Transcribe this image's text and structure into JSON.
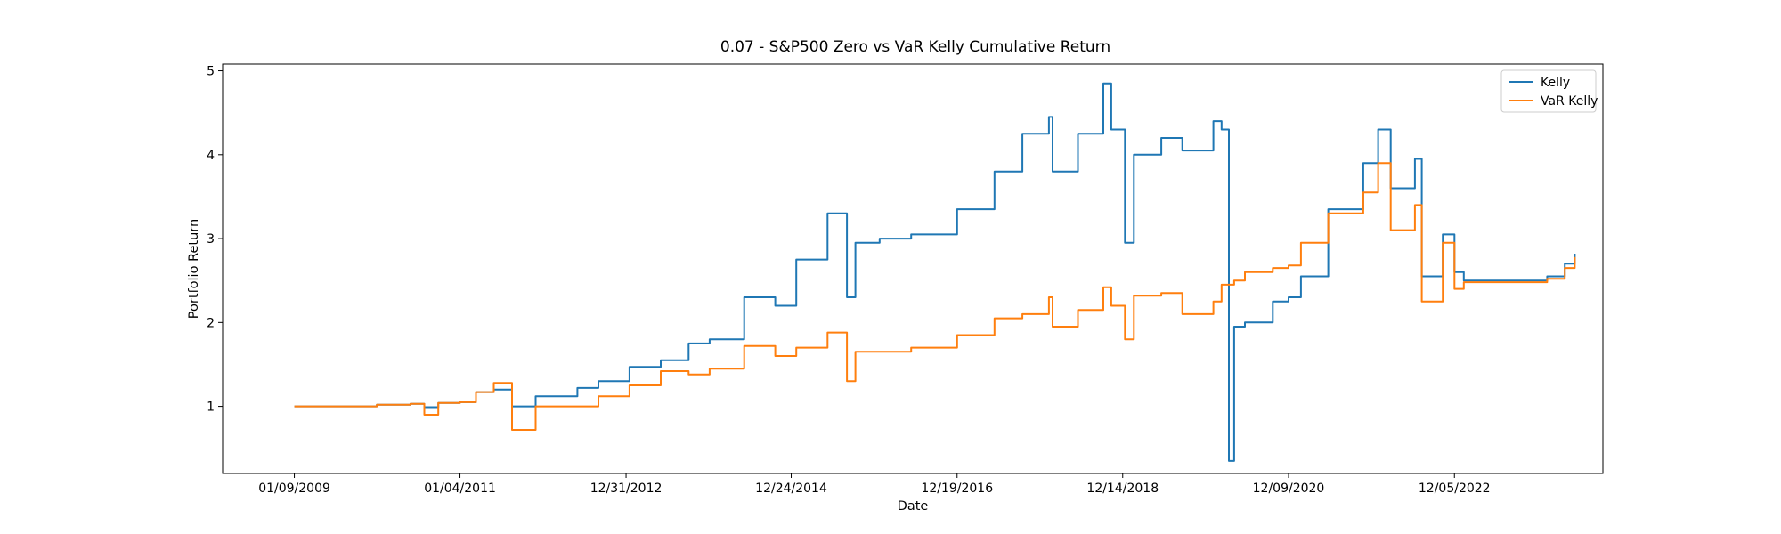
{
  "chart_data": {
    "type": "line",
    "title": "0.07 - S&P500 Zero vs VaR Kelly Cumulative Return",
    "xlabel": "Date",
    "ylabel": "Portfolio Return",
    "x_tick_labels": [
      "01/09/2009",
      "01/04/2011",
      "12/31/2012",
      "12/24/2014",
      "12/19/2016",
      "12/14/2018",
      "12/09/2020",
      "12/05/2022"
    ],
    "x_tick_values": [
      "2009-01-09",
      "2011-01-04",
      "2012-12-31",
      "2014-12-24",
      "2016-12-19",
      "2018-12-14",
      "2020-12-09",
      "2022-12-05"
    ],
    "x_unlabeled_ticks": [
      "2024-11-29"
    ],
    "xlim": [
      "2008-03-01",
      "2024-09-15"
    ],
    "ylim": [
      0.2,
      5.08
    ],
    "y_ticks": [
      1,
      2,
      3,
      4,
      5
    ],
    "grid": false,
    "legend_position": "top-right",
    "series": [
      {
        "name": "Kelly",
        "color": "#1f77b4",
        "points": [
          [
            "2009-01-09",
            1.0
          ],
          [
            "2010-01-05",
            1.02
          ],
          [
            "2010-06-01",
            1.03
          ],
          [
            "2010-08-01",
            0.99
          ],
          [
            "2010-10-01",
            1.04
          ],
          [
            "2011-01-04",
            1.05
          ],
          [
            "2011-03-15",
            1.17
          ],
          [
            "2011-06-01",
            1.2
          ],
          [
            "2011-08-20",
            1.0
          ],
          [
            "2011-12-01",
            1.12
          ],
          [
            "2012-06-01",
            1.22
          ],
          [
            "2012-09-01",
            1.3
          ],
          [
            "2013-01-15",
            1.47
          ],
          [
            "2013-06-01",
            1.55
          ],
          [
            "2013-10-01",
            1.75
          ],
          [
            "2014-01-01",
            1.8
          ],
          [
            "2014-06-01",
            2.3
          ],
          [
            "2014-10-15",
            2.2
          ],
          [
            "2015-01-15",
            2.75
          ],
          [
            "2015-06-01",
            3.3
          ],
          [
            "2015-08-25",
            2.3
          ],
          [
            "2015-10-01",
            2.95
          ],
          [
            "2016-01-15",
            3.0
          ],
          [
            "2016-06-01",
            3.05
          ],
          [
            "2016-12-19",
            3.35
          ],
          [
            "2017-06-01",
            3.8
          ],
          [
            "2017-10-01",
            4.25
          ],
          [
            "2018-01-25",
            4.45
          ],
          [
            "2018-02-10",
            3.8
          ],
          [
            "2018-06-01",
            4.25
          ],
          [
            "2018-09-20",
            4.85
          ],
          [
            "2018-10-25",
            4.3
          ],
          [
            "2018-12-24",
            2.95
          ],
          [
            "2019-02-01",
            4.0
          ],
          [
            "2019-06-01",
            4.2
          ],
          [
            "2019-09-01",
            4.05
          ],
          [
            "2020-01-15",
            4.4
          ],
          [
            "2020-02-20",
            4.3
          ],
          [
            "2020-03-23",
            0.35
          ],
          [
            "2020-04-15",
            1.95
          ],
          [
            "2020-06-01",
            2.0
          ],
          [
            "2020-10-01",
            2.25
          ],
          [
            "2020-12-09",
            2.3
          ],
          [
            "2021-02-01",
            2.55
          ],
          [
            "2021-06-01",
            3.35
          ],
          [
            "2021-11-01",
            3.9
          ],
          [
            "2022-01-05",
            4.3
          ],
          [
            "2022-03-01",
            3.6
          ],
          [
            "2022-06-15",
            3.95
          ],
          [
            "2022-07-15",
            2.55
          ],
          [
            "2022-10-15",
            3.05
          ],
          [
            "2022-12-05",
            2.6
          ],
          [
            "2023-01-15",
            2.5
          ],
          [
            "2024-01-15",
            2.55
          ],
          [
            "2024-04-01",
            2.7
          ],
          [
            "2024-05-15",
            2.82
          ]
        ]
      },
      {
        "name": "VaR Kelly",
        "color": "#ff7f0e",
        "points": [
          [
            "2009-01-09",
            1.0
          ],
          [
            "2010-01-05",
            1.02
          ],
          [
            "2010-06-01",
            1.03
          ],
          [
            "2010-08-01",
            0.9
          ],
          [
            "2010-10-01",
            1.04
          ],
          [
            "2011-01-04",
            1.05
          ],
          [
            "2011-03-15",
            1.17
          ],
          [
            "2011-06-01",
            1.28
          ],
          [
            "2011-08-20",
            0.72
          ],
          [
            "2011-12-01",
            1.0
          ],
          [
            "2012-06-01",
            1.0
          ],
          [
            "2012-09-01",
            1.12
          ],
          [
            "2013-01-15",
            1.25
          ],
          [
            "2013-06-01",
            1.42
          ],
          [
            "2013-10-01",
            1.38
          ],
          [
            "2014-01-01",
            1.45
          ],
          [
            "2014-06-01",
            1.72
          ],
          [
            "2014-10-15",
            1.6
          ],
          [
            "2015-01-15",
            1.7
          ],
          [
            "2015-06-01",
            1.88
          ],
          [
            "2015-08-25",
            1.3
          ],
          [
            "2015-10-01",
            1.65
          ],
          [
            "2016-01-15",
            1.65
          ],
          [
            "2016-06-01",
            1.7
          ],
          [
            "2016-12-19",
            1.85
          ],
          [
            "2017-06-01",
            2.05
          ],
          [
            "2017-10-01",
            2.1
          ],
          [
            "2018-01-25",
            2.3
          ],
          [
            "2018-02-10",
            1.95
          ],
          [
            "2018-06-01",
            2.15
          ],
          [
            "2018-09-20",
            2.42
          ],
          [
            "2018-10-25",
            2.2
          ],
          [
            "2018-12-24",
            1.8
          ],
          [
            "2019-02-01",
            2.32
          ],
          [
            "2019-06-01",
            2.35
          ],
          [
            "2019-09-01",
            2.1
          ],
          [
            "2020-01-15",
            2.25
          ],
          [
            "2020-02-20",
            2.45
          ],
          [
            "2020-03-23",
            2.45
          ],
          [
            "2020-04-15",
            2.5
          ],
          [
            "2020-06-01",
            2.6
          ],
          [
            "2020-10-01",
            2.65
          ],
          [
            "2020-12-09",
            2.68
          ],
          [
            "2021-02-01",
            2.95
          ],
          [
            "2021-06-01",
            3.3
          ],
          [
            "2021-11-01",
            3.55
          ],
          [
            "2022-01-05",
            3.9
          ],
          [
            "2022-03-01",
            3.1
          ],
          [
            "2022-06-15",
            3.4
          ],
          [
            "2022-07-15",
            2.25
          ],
          [
            "2022-10-15",
            2.95
          ],
          [
            "2022-12-05",
            2.4
          ],
          [
            "2023-01-15",
            2.48
          ],
          [
            "2024-01-15",
            2.52
          ],
          [
            "2024-04-01",
            2.65
          ],
          [
            "2024-05-15",
            2.78
          ]
        ]
      }
    ]
  }
}
